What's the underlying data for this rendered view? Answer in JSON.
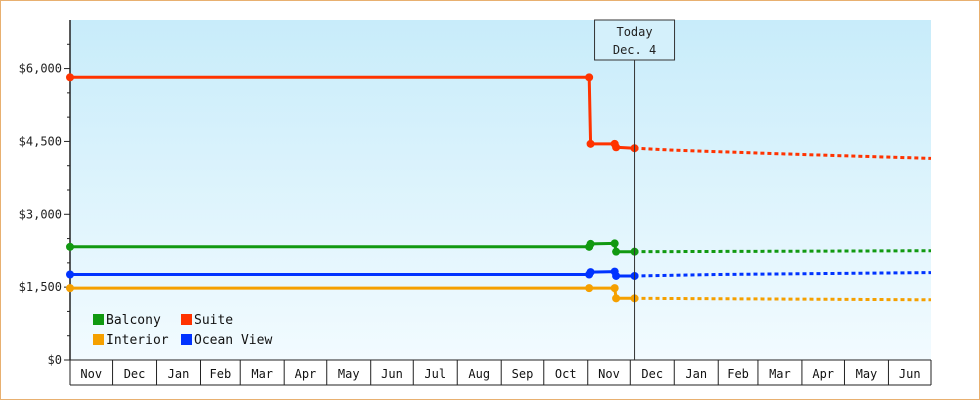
{
  "chart_data": {
    "type": "line",
    "ylim": [
      0,
      7000
    ],
    "y_ticks": [
      0,
      1500,
      3000,
      4500,
      6000
    ],
    "y_tick_labels": [
      "$0",
      "$1,500",
      "$3,000",
      "$4,500",
      "$6,000"
    ],
    "months": [
      "Nov",
      "Dec",
      "Jan",
      "Feb",
      "Mar",
      "Apr",
      "May",
      "Jun",
      "Jul",
      "Aug",
      "Sep",
      "Oct",
      "Nov",
      "Dec",
      "Jan",
      "Feb",
      "Mar",
      "Apr",
      "May",
      "Jun"
    ],
    "x_range": [
      "2013-11-01",
      "2015-07-01"
    ],
    "today": {
      "date": "2014-12-04",
      "label_line1": "Today",
      "label_line2": "Dec. 4"
    },
    "legend_placement": "bottom-left",
    "series": [
      {
        "name": "Balcony",
        "color": "#119911",
        "history": [
          [
            "2013-11-01",
            2330
          ],
          [
            "2014-11-02",
            2330
          ],
          [
            "2014-11-03",
            2390
          ],
          [
            "2014-11-20",
            2400
          ],
          [
            "2014-11-21",
            2230
          ],
          [
            "2014-12-04",
            2230
          ]
        ],
        "forecast": [
          [
            "2014-12-04",
            2230
          ],
          [
            "2015-04-01",
            2240
          ],
          [
            "2015-07-01",
            2250
          ]
        ]
      },
      {
        "name": "Suite",
        "color": "#ff3300",
        "history": [
          [
            "2013-11-01",
            5820
          ],
          [
            "2014-11-02",
            5820
          ],
          [
            "2014-11-03",
            4450
          ],
          [
            "2014-11-20",
            4450
          ],
          [
            "2014-11-21",
            4380
          ],
          [
            "2014-12-04",
            4360
          ]
        ],
        "forecast": [
          [
            "2014-12-04",
            4360
          ],
          [
            "2015-01-01",
            4320
          ],
          [
            "2015-04-01",
            4230
          ],
          [
            "2015-07-01",
            4150
          ]
        ]
      },
      {
        "name": "Interior",
        "color": "#f5a000",
        "history": [
          [
            "2013-11-01",
            1480
          ],
          [
            "2014-11-02",
            1480
          ],
          [
            "2014-11-20",
            1480
          ],
          [
            "2014-11-21",
            1270
          ],
          [
            "2014-12-04",
            1270
          ]
        ],
        "forecast": [
          [
            "2014-12-04",
            1270
          ],
          [
            "2015-07-01",
            1240
          ]
        ]
      },
      {
        "name": "Ocean View",
        "color": "#0033ff",
        "history": [
          [
            "2013-11-01",
            1760
          ],
          [
            "2014-11-02",
            1760
          ],
          [
            "2014-11-03",
            1810
          ],
          [
            "2014-11-20",
            1820
          ],
          [
            "2014-11-21",
            1730
          ],
          [
            "2014-12-04",
            1730
          ]
        ],
        "forecast": [
          [
            "2014-12-04",
            1730
          ],
          [
            "2015-02-01",
            1760
          ],
          [
            "2015-07-01",
            1800
          ]
        ]
      }
    ]
  }
}
